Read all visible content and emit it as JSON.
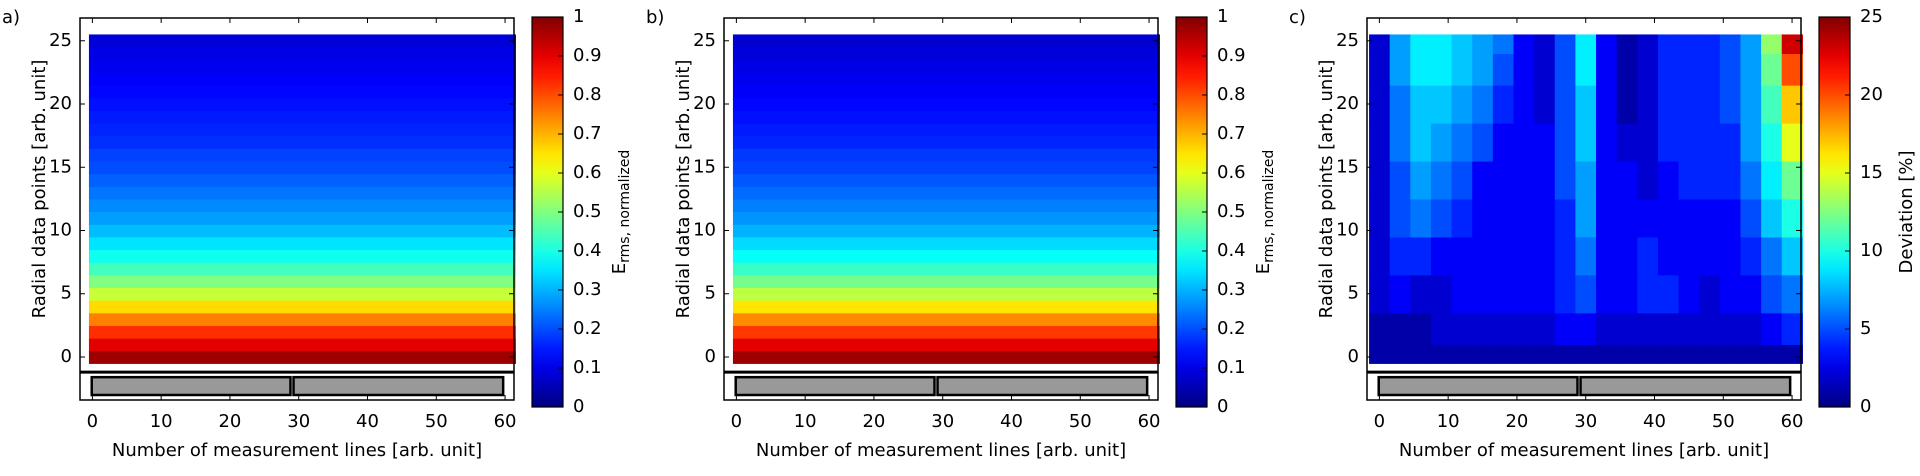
{
  "chart_data": [
    {
      "type": "heatmap",
      "panel_label": "a)",
      "xlabel": "Number of measurement lines [arb. unit]",
      "ylabel": "Radial data points [arb. unit]",
      "xlim": [
        -1.8,
        61.3
      ],
      "ylim": [
        -3.4,
        26.8
      ],
      "xticks": [
        0,
        10,
        20,
        30,
        40,
        50,
        60
      ],
      "yticks": [
        0,
        5,
        10,
        15,
        20,
        25
      ],
      "x_extent": [
        -0.5,
        61.5
      ],
      "y_extent": [
        -0.5,
        25.5
      ],
      "y": [
        0,
        1,
        2,
        3,
        4,
        5,
        6,
        7,
        8,
        9,
        10,
        11,
        12,
        13,
        14,
        15,
        16,
        17,
        18,
        19,
        20,
        21,
        22,
        23,
        24,
        25
      ],
      "values": [
        [
          0.97
        ],
        [
          0.9
        ],
        [
          0.83
        ],
        [
          0.75
        ],
        [
          0.66
        ],
        [
          0.57
        ],
        [
          0.5
        ],
        [
          0.44
        ],
        [
          0.39
        ],
        [
          0.35
        ],
        [
          0.31
        ],
        [
          0.28
        ],
        [
          0.26
        ],
        [
          0.24
        ],
        [
          0.22
        ],
        [
          0.2
        ],
        [
          0.19
        ],
        [
          0.17
        ],
        [
          0.16
        ],
        [
          0.15
        ],
        [
          0.14
        ],
        [
          0.13
        ],
        [
          0.12
        ],
        [
          0.11
        ],
        [
          0.1
        ],
        [
          0.09
        ]
      ],
      "colormap": "jet",
      "clim": [
        0,
        1
      ],
      "cticks": [
        0,
        0.1,
        0.2,
        0.3,
        0.4,
        0.5,
        0.6,
        0.7,
        0.8,
        0.9,
        1
      ],
      "colorbar_label": "E",
      "colorbar_label_subscript": "rms, normalized"
    },
    {
      "type": "heatmap",
      "panel_label": "b)",
      "xlabel": "Number of measurement lines [arb. unit]",
      "ylabel": "Radial data points [arb. unit]",
      "xlim": [
        -1.8,
        61.3
      ],
      "ylim": [
        -3.4,
        26.8
      ],
      "xticks": [
        0,
        10,
        20,
        30,
        40,
        50,
        60
      ],
      "yticks": [
        0,
        5,
        10,
        15,
        20,
        25
      ],
      "x_extent": [
        -0.5,
        61.5
      ],
      "y_extent": [
        -0.5,
        25.5
      ],
      "y": [
        0,
        1,
        2,
        3,
        4,
        5,
        6,
        7,
        8,
        9,
        10,
        11,
        12,
        13,
        14,
        15,
        16,
        17,
        18,
        19,
        20,
        21,
        22,
        23,
        24,
        25
      ],
      "values": [
        [
          0.97
        ],
        [
          0.9
        ],
        [
          0.82
        ],
        [
          0.74
        ],
        [
          0.65
        ],
        [
          0.56
        ],
        [
          0.49
        ],
        [
          0.43
        ],
        [
          0.38
        ],
        [
          0.34
        ],
        [
          0.3
        ],
        [
          0.27
        ],
        [
          0.25
        ],
        [
          0.23
        ],
        [
          0.21
        ],
        [
          0.19
        ],
        [
          0.18
        ],
        [
          0.16
        ],
        [
          0.15
        ],
        [
          0.14
        ],
        [
          0.13
        ],
        [
          0.12
        ],
        [
          0.11
        ],
        [
          0.1
        ],
        [
          0.09
        ],
        [
          0.08
        ]
      ],
      "colormap": "jet",
      "clim": [
        0,
        1
      ],
      "cticks": [
        0,
        0.1,
        0.2,
        0.3,
        0.4,
        0.5,
        0.6,
        0.7,
        0.8,
        0.9,
        1
      ],
      "colorbar_label": "E",
      "colorbar_label_subscript": "rms, normalized"
    },
    {
      "type": "heatmap",
      "panel_label": "c)",
      "xlabel": "Number of measurement lines [arb. unit]",
      "ylabel": "Radial data points [arb. unit]",
      "xlim": [
        -1.8,
        61.3
      ],
      "ylim": [
        -3.4,
        26.8
      ],
      "xticks": [
        0,
        10,
        20,
        30,
        40,
        50,
        60
      ],
      "yticks": [
        0,
        5,
        10,
        15,
        20,
        25
      ],
      "x_extent": [
        -1.5,
        61.5
      ],
      "y_extent": [
        -0.5,
        25.5
      ],
      "x": [
        0,
        3,
        6,
        9,
        12,
        15,
        18,
        21,
        24,
        27,
        30,
        33,
        36,
        39,
        42,
        45,
        48,
        51,
        54,
        57,
        60
      ],
      "y": [
        0,
        2,
        5,
        8,
        11,
        14,
        17,
        20,
        23,
        25
      ],
      "values": [
        [
          1,
          1,
          1,
          1,
          1,
          1,
          1,
          1,
          1,
          1,
          1,
          1,
          1,
          1,
          1,
          1,
          1,
          1,
          1,
          1,
          1
        ],
        [
          1,
          1,
          1,
          2,
          2,
          2,
          2,
          2,
          2,
          3,
          3,
          2,
          2,
          2,
          2,
          2,
          2,
          2,
          2,
          3,
          4
        ],
        [
          2,
          3,
          2,
          2,
          3,
          3,
          3,
          3,
          3,
          4,
          5,
          3,
          3,
          4,
          4,
          3,
          2,
          3,
          3,
          5,
          6
        ],
        [
          2,
          4,
          4,
          3,
          3,
          3,
          3,
          3,
          3,
          4,
          6,
          3,
          3,
          4,
          3,
          3,
          3,
          3,
          4,
          6,
          8
        ],
        [
          2,
          5,
          6,
          5,
          4,
          3,
          3,
          3,
          3,
          4,
          7,
          3,
          3,
          3,
          3,
          3,
          3,
          3,
          5,
          8,
          10
        ],
        [
          2,
          5,
          7,
          6,
          5,
          3,
          3,
          3,
          3,
          5,
          7,
          3,
          3,
          2,
          3,
          4,
          4,
          4,
          6,
          9,
          12
        ],
        [
          2,
          6,
          8,
          7,
          6,
          5,
          3,
          3,
          3,
          5,
          8,
          3,
          2,
          2,
          4,
          4,
          4,
          4,
          7,
          10,
          15
        ],
        [
          2,
          6,
          8,
          8,
          7,
          6,
          4,
          3,
          2,
          5,
          8,
          3,
          1,
          2,
          4,
          4,
          4,
          5,
          7,
          11,
          17
        ],
        [
          2,
          7,
          9,
          9,
          8,
          7,
          5,
          3,
          2,
          5,
          9,
          3,
          1,
          2,
          4,
          4,
          4,
          5,
          7,
          12,
          20
        ],
        [
          2,
          7,
          9,
          9,
          8,
          7,
          6,
          3,
          2,
          5,
          9,
          3,
          1,
          2,
          4,
          4,
          4,
          5,
          7,
          13,
          23
        ]
      ],
      "colormap": "jet",
      "clim": [
        0,
        25
      ],
      "cticks": [
        0,
        5,
        10,
        15,
        20,
        25
      ],
      "colorbar_label": "Deviation [%]"
    }
  ]
}
